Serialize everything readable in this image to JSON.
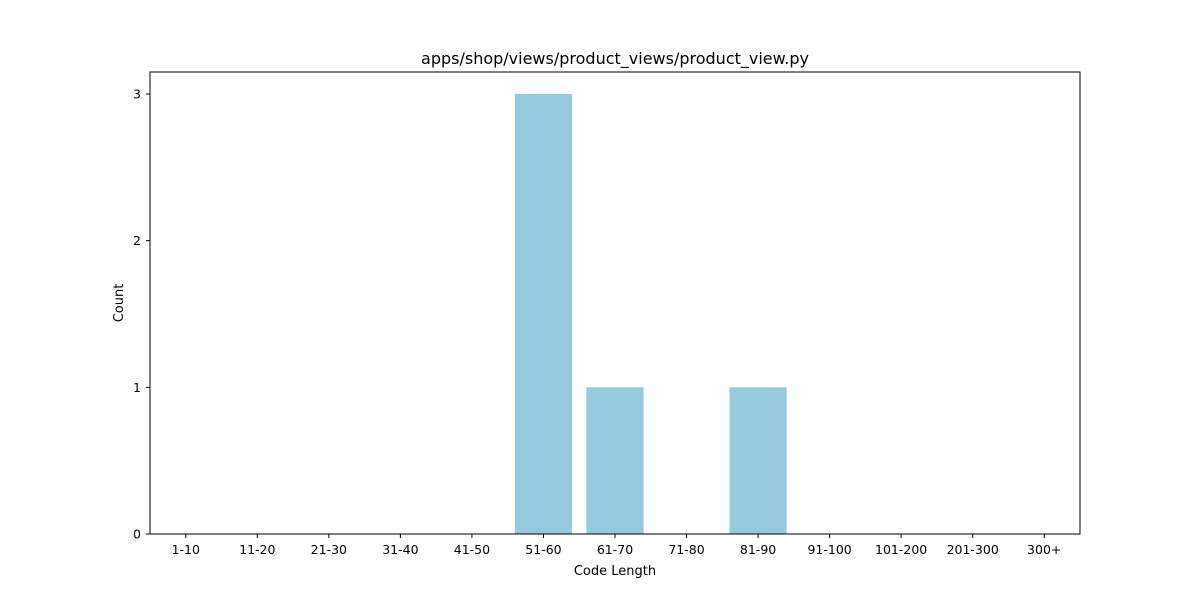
{
  "chart_data": {
    "type": "bar",
    "title": "apps/shop/views/product_views/product_view.py",
    "xlabel": "Code Length",
    "ylabel": "Count",
    "categories": [
      "1-10",
      "11-20",
      "21-30",
      "31-40",
      "41-50",
      "51-60",
      "61-70",
      "71-80",
      "81-90",
      "91-100",
      "101-200",
      "201-300",
      "300+"
    ],
    "values": [
      0,
      0,
      0,
      0,
      0,
      3,
      1,
      0,
      1,
      0,
      0,
      0,
      0
    ],
    "ylim": [
      0,
      3.15
    ],
    "yticks": [
      0,
      1,
      2,
      3
    ],
    "bar_color": "#96c9de",
    "grid": false,
    "legend": "none"
  }
}
